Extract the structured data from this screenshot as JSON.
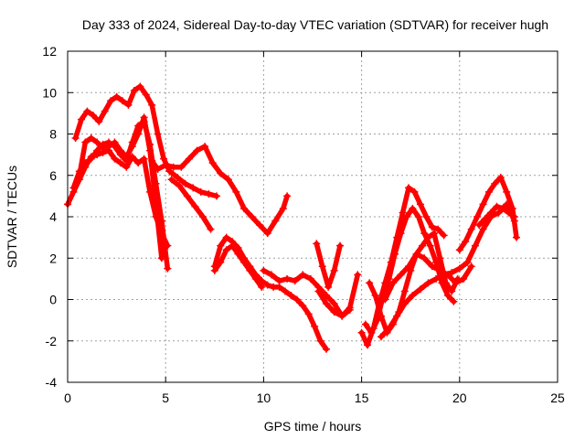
{
  "chart_data": {
    "type": "scatter",
    "title": "Day 333 of 2024, Sidereal Day-to-day VTEC variation (SDTVAR) for receiver hugh",
    "xlabel": "GPS time / hours",
    "ylabel": "SDTVAR / TECUs",
    "xlim": [
      0,
      25
    ],
    "ylim": [
      -4,
      12
    ],
    "xticks": [
      0,
      5,
      10,
      15,
      20,
      25
    ],
    "yticks": [
      -4,
      -2,
      0,
      2,
      4,
      6,
      8,
      10,
      12
    ],
    "grid": true,
    "marker": "plus",
    "color": "#ff0000",
    "series": [
      {
        "x": [
          0.0,
          0.3,
          0.6,
          0.9,
          1.2,
          1.5,
          1.8,
          2.1,
          2.4,
          2.7,
          3.0,
          3.3,
          3.6,
          3.9,
          4.2,
          4.5,
          4.8,
          5.1
        ],
        "y": [
          4.6,
          5.2,
          5.8,
          6.4,
          6.9,
          7.0,
          7.1,
          7.2,
          6.8,
          6.6,
          6.4,
          6.9,
          6.6,
          6.8,
          5.2,
          4.0,
          3.2,
          2.6
        ]
      },
      {
        "x": [
          0.3,
          0.6,
          0.9,
          1.2,
          1.5,
          1.8,
          2.1,
          2.4,
          2.7,
          3.0,
          3.3,
          3.6,
          3.9,
          4.2,
          4.5,
          4.8,
          5.1
        ],
        "y": [
          5.4,
          6.2,
          6.6,
          6.8,
          7.2,
          7.5,
          7.6,
          7.4,
          7.0,
          6.7,
          7.6,
          8.4,
          8.6,
          7.5,
          5.6,
          3.8,
          1.5
        ]
      },
      {
        "x": [
          0.6,
          0.9,
          1.2,
          1.5,
          1.8,
          2.1,
          2.4,
          2.7,
          3.0,
          3.3,
          3.6,
          3.9,
          4.2,
          4.5,
          4.8
        ],
        "y": [
          6.0,
          7.6,
          7.8,
          7.6,
          7.3,
          7.4,
          7.6,
          7.2,
          6.9,
          7.4,
          8.0,
          8.8,
          7.2,
          4.6,
          2.0
        ]
      },
      {
        "x": [
          0.4,
          0.7,
          1.0,
          1.3,
          1.6,
          1.9,
          2.2,
          2.5,
          2.8,
          3.1,
          3.4,
          3.7,
          4.0,
          4.3,
          4.6,
          4.9,
          5.2,
          5.6,
          6.0,
          6.4,
          6.8,
          7.2,
          7.6
        ],
        "y": [
          7.8,
          8.7,
          9.1,
          8.9,
          8.6,
          9.1,
          9.6,
          9.8,
          9.6,
          9.4,
          10.1,
          10.3,
          9.9,
          9.4,
          8.0,
          6.8,
          6.2,
          5.9,
          5.6,
          5.4,
          5.2,
          5.1,
          5.0
        ]
      },
      {
        "x": [
          4.3,
          4.6,
          5.0,
          5.4,
          5.8,
          6.2,
          6.6,
          7.0,
          7.4,
          7.8,
          8.2,
          8.6,
          9.0,
          9.4,
          9.8,
          10.2,
          10.6,
          11.0,
          11.2
        ],
        "y": [
          6.7,
          6.3,
          6.5,
          6.4,
          6.4,
          6.8,
          7.2,
          7.4,
          6.6,
          6.1,
          5.8,
          5.2,
          4.4,
          4.0,
          3.6,
          3.2,
          3.8,
          4.4,
          5.0
        ]
      },
      {
        "x": [
          5.3,
          5.7,
          6.1,
          6.5,
          6.9,
          7.3
        ],
        "y": [
          5.8,
          5.5,
          5.0,
          4.5,
          4.0,
          3.4
        ]
      },
      {
        "x": [
          7.5,
          7.8,
          8.1,
          8.4,
          8.7,
          9.0,
          9.3,
          9.6,
          9.9,
          10.2,
          10.5,
          10.8,
          11.1,
          11.4,
          11.7,
          12.0,
          12.3,
          12.6,
          12.9,
          13.2
        ],
        "y": [
          1.6,
          2.6,
          3.0,
          2.8,
          2.5,
          2.0,
          1.6,
          1.2,
          0.9,
          0.7,
          0.6,
          0.6,
          0.4,
          0.2,
          0.0,
          -0.3,
          -0.7,
          -1.3,
          -2.0,
          -2.4
        ]
      },
      {
        "x": [
          7.5,
          7.8,
          8.1,
          8.4,
          8.7,
          9.0,
          9.3,
          9.6,
          9.9
        ],
        "y": [
          1.4,
          1.8,
          2.4,
          2.6,
          2.2,
          1.8,
          1.4,
          1.0,
          0.6
        ]
      },
      {
        "x": [
          10.0,
          10.4,
          10.8,
          11.2,
          11.6,
          12.0,
          12.4,
          12.8,
          13.2,
          13.6,
          14.0,
          14.4
        ],
        "y": [
          1.4,
          1.2,
          0.9,
          1.0,
          0.9,
          1.2,
          1.0,
          0.6,
          0.2,
          -0.2,
          -0.8,
          -0.5
        ]
      },
      {
        "x": [
          12.7,
          13.0,
          13.3,
          13.6,
          13.9
        ],
        "y": [
          2.7,
          1.6,
          0.6,
          1.4,
          2.6
        ]
      },
      {
        "x": [
          12.8,
          13.2,
          13.6,
          14.0,
          14.4,
          14.8
        ],
        "y": [
          0.4,
          -0.2,
          -0.6,
          -0.8,
          -0.4,
          1.2
        ]
      },
      {
        "x": [
          15.0,
          15.3,
          15.6,
          15.9,
          16.2,
          16.5,
          16.8,
          17.1,
          17.4,
          17.7,
          18.0,
          18.3,
          18.6,
          18.9,
          19.2
        ],
        "y": [
          -1.6,
          -2.2,
          -1.4,
          -0.2,
          0.8,
          1.8,
          3.0,
          4.2,
          5.4,
          5.2,
          4.6,
          4.0,
          3.5,
          3.4,
          3.1
        ]
      },
      {
        "x": [
          15.2,
          15.5,
          15.8,
          16.1,
          16.4,
          16.7,
          17.0,
          17.3,
          17.6,
          17.9,
          18.2,
          18.5,
          18.8,
          19.1,
          19.4,
          19.7
        ],
        "y": [
          -1.2,
          -1.6,
          -1.0,
          0.2,
          1.0,
          2.2,
          3.2,
          4.0,
          4.4,
          4.0,
          3.2,
          2.6,
          1.8,
          0.8,
          0.2,
          -0.1
        ]
      },
      {
        "x": [
          15.4,
          15.7,
          16.0,
          16.3,
          16.6,
          16.9,
          17.2,
          17.5,
          17.8,
          18.1,
          18.4,
          18.7,
          19.0,
          19.3,
          19.6,
          19.9
        ],
        "y": [
          0.8,
          0.2,
          -0.8,
          -1.6,
          -1.2,
          -0.6,
          0.4,
          1.4,
          2.2,
          2.6,
          3.0,
          3.2,
          2.0,
          0.8,
          0.4,
          1.0
        ]
      },
      {
        "x": [
          16.0,
          16.4,
          16.8,
          17.2,
          17.6,
          18.0,
          18.4,
          18.8,
          19.2,
          19.6,
          20.0,
          20.4,
          20.8,
          21.2,
          21.6,
          22.0,
          22.4,
          22.8
        ],
        "y": [
          -1.8,
          -1.4,
          -0.8,
          -0.2,
          0.2,
          0.5,
          0.8,
          1.0,
          1.2,
          1.3,
          1.5,
          1.8,
          2.6,
          3.4,
          4.0,
          4.2,
          4.6,
          3.8
        ]
      },
      {
        "x": [
          16.2,
          16.6,
          17.0,
          17.4,
          17.8,
          18.2,
          18.6,
          19.0,
          19.4,
          19.8,
          20.2,
          20.6
        ],
        "y": [
          0.0,
          0.8,
          1.2,
          1.6,
          2.2,
          2.0,
          1.6,
          1.4,
          1.2,
          0.8,
          1.0,
          1.6
        ]
      },
      {
        "x": [
          20.0,
          20.3,
          20.6,
          20.9,
          21.2,
          21.5,
          21.8,
          22.1,
          22.4,
          22.7,
          22.9
        ],
        "y": [
          2.4,
          2.8,
          3.4,
          4.0,
          4.6,
          5.2,
          5.6,
          5.9,
          5.2,
          4.4,
          3.0
        ]
      },
      {
        "x": [
          21.0,
          21.3,
          21.6,
          21.9,
          22.2,
          22.5,
          22.8
        ],
        "y": [
          3.6,
          3.9,
          4.2,
          4.5,
          4.4,
          4.2,
          4.0
        ]
      }
    ]
  }
}
